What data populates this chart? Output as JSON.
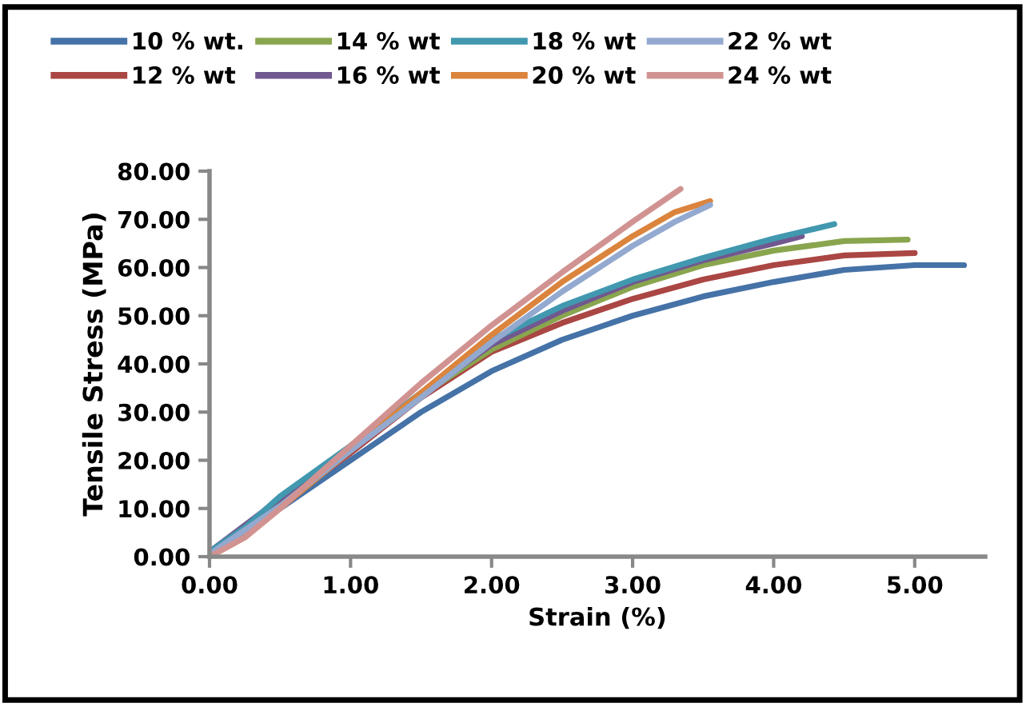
{
  "chart_data": {
    "type": "line",
    "xlabel": "Strain (%)",
    "ylabel": "Tensile Stress (MPa)",
    "xlim": [
      0,
      5.5
    ],
    "xticks": [
      {
        "value": 0,
        "label": "0.00"
      },
      {
        "value": 1,
        "label": "1.00"
      },
      {
        "value": 2,
        "label": "2.00"
      },
      {
        "value": 3,
        "label": "3.00"
      },
      {
        "value": 4,
        "label": "4.00"
      },
      {
        "value": 5,
        "label": "5.00"
      }
    ],
    "ylim": [
      0,
      80
    ],
    "yticks": [
      {
        "value": 0,
        "label": "0.00"
      },
      {
        "value": 10,
        "label": "10.00"
      },
      {
        "value": 20,
        "label": "20.00"
      },
      {
        "value": 30,
        "label": "30.00"
      },
      {
        "value": 40,
        "label": "40.00"
      },
      {
        "value": 50,
        "label": "50.00"
      },
      {
        "value": 60,
        "label": "60.00"
      },
      {
        "value": 70,
        "label": "70.00"
      },
      {
        "value": 80,
        "label": "80.00"
      }
    ],
    "grid": false,
    "legend": "top",
    "marker": "none",
    "line_style": "solid",
    "series": [
      {
        "name": "10 % wt.",
        "color": "#4572a7",
        "x": [
          0,
          0.25,
          0.5,
          1,
          1.5,
          2,
          2.5,
          3,
          3.5,
          4,
          4.5,
          5,
          5.35
        ],
        "values": [
          0.5,
          5,
          10,
          20,
          30,
          38.5,
          45,
          50,
          54,
          57,
          59.5,
          60.5,
          60.5
        ]
      },
      {
        "name": "12 % wt",
        "color": "#aa4643",
        "x": [
          0,
          0.25,
          0.5,
          1,
          1.5,
          2,
          2.5,
          3,
          3.5,
          4,
          4.5,
          5
        ],
        "values": [
          0.5,
          5.5,
          11,
          21.5,
          33,
          42.5,
          48.5,
          53.5,
          57.5,
          60.5,
          62.5,
          63
        ]
      },
      {
        "name": "14 % wt",
        "color": "#89a54e",
        "x": [
          0,
          0.25,
          0.5,
          1,
          1.5,
          2,
          2.5,
          3,
          3.5,
          4,
          4.5,
          4.95
        ],
        "values": [
          1,
          6,
          12,
          22,
          33.5,
          43,
          50,
          56,
          60.5,
          63.5,
          65.5,
          65.8
        ]
      },
      {
        "name": "16 % wt",
        "color": "#71588f",
        "x": [
          0,
          0.5,
          1,
          1.5,
          2,
          2.5,
          3,
          3.5,
          4,
          4.2
        ],
        "values": [
          1,
          12,
          22,
          33.5,
          44,
          51,
          57,
          61.5,
          65,
          66.5
        ]
      },
      {
        "name": "18 % wt",
        "color": "#4198af",
        "x": [
          0,
          0.25,
          0.5,
          1,
          1.5,
          2,
          2.5,
          3,
          3.5,
          4,
          4.43
        ],
        "values": [
          1,
          6,
          12.5,
          23,
          34,
          45,
          52,
          57.5,
          62,
          66,
          69
        ]
      },
      {
        "name": "20 % wt",
        "color": "#db843d",
        "x": [
          0,
          0.25,
          0.5,
          1,
          1.5,
          2,
          2.5,
          3,
          3.3,
          3.55
        ],
        "values": [
          0,
          4,
          10,
          22,
          34,
          46,
          57,
          66.5,
          71.5,
          73.8
        ]
      },
      {
        "name": "22 % wt",
        "color": "#93a9cf",
        "x": [
          0,
          0.5,
          1,
          1.5,
          2,
          2.5,
          3,
          3.3,
          3.55
        ],
        "values": [
          0.5,
          10.5,
          22,
          33,
          44.5,
          55,
          64.5,
          69.5,
          73
        ]
      },
      {
        "name": "24 % wt",
        "color": "#d19392",
        "x": [
          0,
          0.25,
          0.5,
          1,
          1.5,
          2,
          2.5,
          3,
          3.34
        ],
        "values": [
          0,
          4,
          10,
          23,
          36,
          48,
          59,
          69.5,
          76.3
        ]
      }
    ]
  }
}
